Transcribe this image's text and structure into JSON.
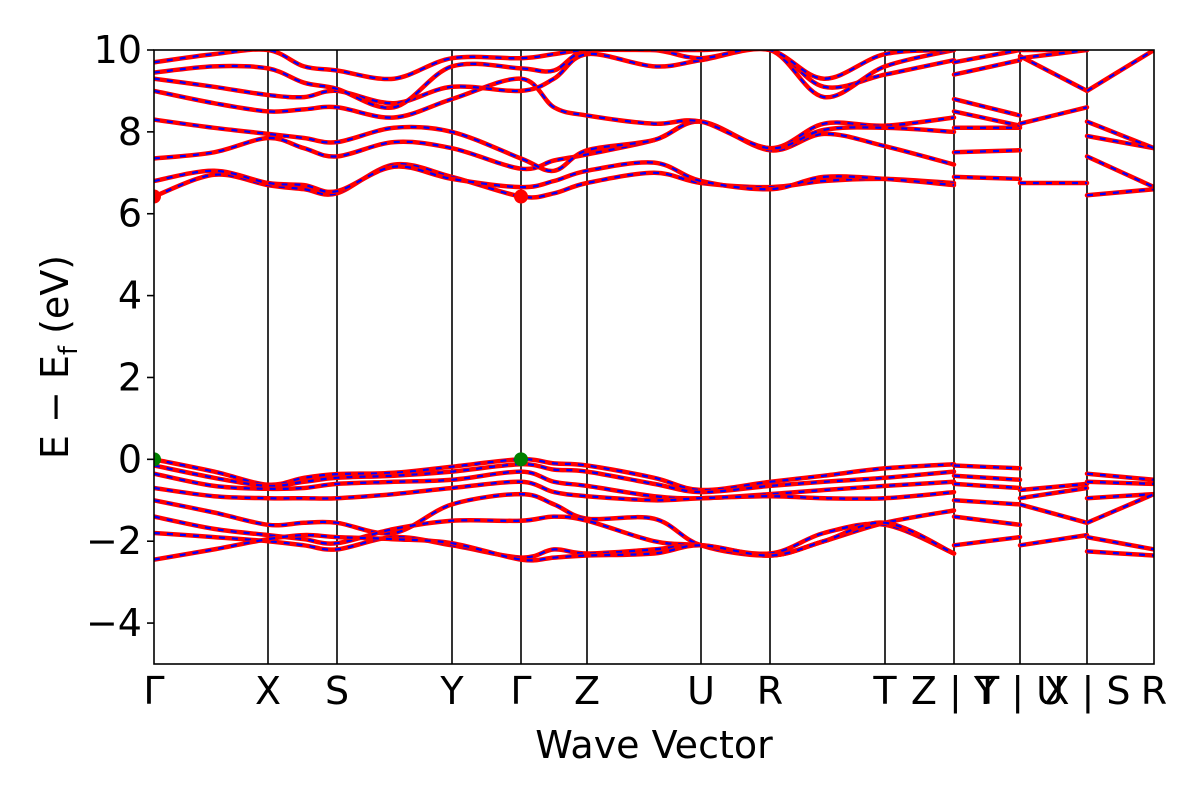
{
  "chart_data": {
    "type": "line",
    "title": "",
    "xlabel": "Wave Vector",
    "ylabel_parts": {
      "main": "E − E",
      "sub": "f",
      "unit": " (eV)"
    },
    "ylim": [
      -5,
      10
    ],
    "yticks": [
      -4,
      -2,
      0,
      2,
      4,
      6,
      8,
      10
    ],
    "ytick_labels": [
      "−4",
      "−2",
      "0",
      "2",
      "4",
      "6",
      "8",
      "10"
    ],
    "xlim": [
      0,
      10
    ],
    "kpoints": [
      {
        "label": "Γ",
        "x": 0.0
      },
      {
        "label": "X",
        "x": 1.14
      },
      {
        "label": "S",
        "x": 1.83
      },
      {
        "label": "Y",
        "x": 2.98
      },
      {
        "label": "Γ",
        "x": 3.67
      },
      {
        "label": "Z",
        "x": 4.33
      },
      {
        "label": "U",
        "x": 5.47
      },
      {
        "label": "R",
        "x": 6.16
      },
      {
        "label": "T",
        "x": 7.31
      },
      {
        "label": "Z | Y",
        "x": 8.0
      },
      {
        "label": "T | U",
        "x": 8.66
      },
      {
        "label": "X | S",
        "x": 9.33
      },
      {
        "label": "R",
        "x": 10.0
      }
    ],
    "grid": false,
    "legend": "none",
    "colors": {
      "band_primary": "#ff0000",
      "band_overlay": "#0000ff",
      "vbm_marker": "#008000",
      "cbm_marker": "#ff0000"
    },
    "markers": [
      {
        "name": "VBM",
        "points": [
          [
            0.0,
            0.0
          ],
          [
            3.67,
            0.0
          ]
        ],
        "color": "#008000"
      },
      {
        "name": "CBM",
        "points": [
          [
            0.0,
            6.42
          ],
          [
            3.67,
            6.42
          ]
        ],
        "color": "#ff0000"
      }
    ],
    "series": [
      {
        "x": [
          0,
          0.6,
          1.14,
          1.5,
          1.83,
          2.4,
          2.98,
          3.67,
          4.0,
          4.33,
          5.0,
          5.47,
          6.16,
          6.7,
          7.31,
          8.0
        ],
        "values": [
          0.0,
          -0.3,
          -0.62,
          -0.45,
          -0.36,
          -0.33,
          -0.18,
          0.0,
          -0.1,
          -0.15,
          -0.45,
          -0.75,
          -0.55,
          -0.4,
          -0.22,
          -0.12
        ]
      },
      {
        "x": [
          8.0,
          8.66
        ],
        "values": [
          -0.15,
          -0.22
        ]
      },
      {
        "x": [
          9.33,
          10.0
        ],
        "values": [
          -0.35,
          -0.5
        ]
      },
      {
        "x": [
          0,
          0.6,
          1.14,
          1.5,
          1.83,
          2.4,
          2.98,
          3.67,
          4.0,
          4.33,
          5.0,
          5.47,
          6.16,
          6.7,
          7.31,
          8.0
        ],
        "values": [
          -0.15,
          -0.45,
          -0.65,
          -0.55,
          -0.45,
          -0.4,
          -0.3,
          -0.12,
          -0.25,
          -0.3,
          -0.6,
          -0.8,
          -0.65,
          -0.55,
          -0.45,
          -0.3
        ]
      },
      {
        "x": [
          8.0,
          8.66
        ],
        "values": [
          -0.4,
          -0.5
        ]
      },
      {
        "x": [
          8.66,
          9.33
        ],
        "values": [
          -0.75,
          -0.6
        ]
      },
      {
        "x": [
          9.33,
          10.0
        ],
        "values": [
          -0.55,
          -0.6
        ]
      },
      {
        "x": [
          0,
          0.6,
          1.14,
          1.5,
          1.83,
          2.4,
          2.98,
          3.67,
          4.0,
          4.33,
          5.0,
          5.47,
          6.16,
          6.7,
          7.31,
          8.0
        ],
        "values": [
          -0.35,
          -0.65,
          -0.72,
          -0.7,
          -0.6,
          -0.55,
          -0.5,
          -0.3,
          -0.55,
          -0.65,
          -0.9,
          -0.95,
          -0.85,
          -0.75,
          -0.65,
          -0.55
        ]
      },
      {
        "x": [
          8.0,
          8.66
        ],
        "values": [
          -0.6,
          -0.7
        ]
      },
      {
        "x": [
          8.66,
          9.33
        ],
        "values": [
          -0.95,
          -0.7
        ]
      },
      {
        "x": [
          9.33,
          10.0
        ],
        "values": [
          -0.95,
          -0.85
        ]
      },
      {
        "x": [
          0,
          0.6,
          1.14,
          1.5,
          1.83,
          2.4,
          2.98,
          3.67,
          4.0,
          4.33,
          5.0,
          5.47,
          6.16,
          6.7,
          7.31,
          8.0
        ],
        "values": [
          -0.7,
          -0.9,
          -0.95,
          -0.95,
          -0.95,
          -0.85,
          -0.7,
          -0.55,
          -0.8,
          -0.9,
          -1.0,
          -0.95,
          -0.9,
          -0.95,
          -0.95,
          -0.8
        ]
      },
      {
        "x": [
          8.0,
          8.66
        ],
        "values": [
          -1.0,
          -1.1
        ]
      },
      {
        "x": [
          8.66,
          9.33
        ],
        "values": [
          -1.1,
          -1.55
        ]
      },
      {
        "x": [
          9.33,
          10.0
        ],
        "values": [
          -1.55,
          -0.85
        ]
      },
      {
        "x": [
          0,
          0.6,
          1.14,
          1.5,
          1.83,
          2.4,
          2.98,
          3.67,
          4.0,
          4.33,
          5.0,
          5.47,
          6.16,
          6.7,
          7.31,
          8.0
        ],
        "values": [
          -1.0,
          -1.3,
          -1.6,
          -1.55,
          -1.55,
          -1.8,
          -1.1,
          -0.85,
          -1.1,
          -1.45,
          -1.45,
          -2.1,
          -2.35,
          -2.0,
          -1.55,
          -1.25
        ]
      },
      {
        "x": [
          8.0,
          8.66
        ],
        "values": [
          -1.4,
          -1.6
        ]
      },
      {
        "x": [
          8.66,
          9.33
        ],
        "values": [
          -2.1,
          -1.85
        ]
      },
      {
        "x": [
          9.33,
          10.0
        ],
        "values": [
          -1.9,
          -2.2
        ]
      },
      {
        "x": [
          0,
          0.6,
          1.14,
          1.5,
          1.83,
          2.4,
          2.98,
          3.67,
          4.0,
          4.33,
          5.0,
          5.47,
          6.16,
          6.7,
          7.31,
          8.0
        ],
        "values": [
          -1.4,
          -1.7,
          -1.85,
          -1.95,
          -2.05,
          -1.7,
          -1.5,
          -1.5,
          -1.4,
          -1.5,
          -2.0,
          -2.1,
          -2.3,
          -1.8,
          -1.6,
          -2.3
        ]
      },
      {
        "x": [
          8.0,
          8.66
        ],
        "values": [
          -2.1,
          -1.9
        ]
      },
      {
        "x": [
          9.33,
          10.0
        ],
        "values": [
          -2.25,
          -2.35
        ]
      },
      {
        "x": [
          0,
          0.6,
          1.14,
          1.5,
          1.83,
          2.4,
          2.98,
          3.67,
          4.0,
          4.33,
          5.0,
          5.47,
          6.16,
          6.7,
          7.31,
          8.0
        ],
        "values": [
          -1.8,
          -1.9,
          -2.0,
          -2.1,
          -2.2,
          -1.9,
          -2.1,
          -2.4,
          -2.2,
          -2.3,
          -2.2,
          -2.1,
          -2.35,
          -2.0,
          -1.55,
          -2.3
        ]
      },
      {
        "x": [
          0,
          0.6,
          1.14,
          1.5,
          1.83,
          2.4,
          2.98,
          3.67,
          4.0,
          4.33,
          5.0,
          5.47,
          6.16,
          6.7,
          7.31,
          8.0
        ],
        "values": [
          -2.45,
          -2.2,
          -1.95,
          -1.85,
          -1.9,
          -1.95,
          -2.05,
          -2.45,
          -2.4,
          -2.35,
          -2.3,
          -2.1,
          -2.35,
          -2.0,
          -1.55,
          -2.3
        ]
      },
      {
        "x": [
          0,
          0.6,
          1.14,
          1.5,
          1.83,
          2.4,
          2.98,
          3.67,
          4.0,
          4.33,
          5.0,
          5.47,
          6.16,
          6.7,
          7.31,
          8.0
        ],
        "values": [
          6.42,
          6.95,
          6.7,
          6.6,
          6.5,
          7.2,
          6.9,
          6.42,
          6.5,
          6.75,
          7.0,
          6.75,
          6.65,
          6.8,
          6.85,
          6.75
        ]
      },
      {
        "x": [
          8.0,
          8.66
        ],
        "values": [
          6.9,
          6.85
        ]
      },
      {
        "x": [
          8.66,
          9.33
        ],
        "values": [
          6.75,
          6.75
        ]
      },
      {
        "x": [
          9.33,
          10.0
        ],
        "values": [
          6.45,
          6.6
        ]
      },
      {
        "x": [
          0,
          0.6,
          1.14,
          1.5,
          1.83,
          2.4,
          2.98,
          3.67,
          4.0,
          4.33,
          5.0,
          5.47,
          6.16,
          6.7,
          7.31,
          8.0
        ],
        "values": [
          6.8,
          7.05,
          6.75,
          6.7,
          6.55,
          7.15,
          6.85,
          6.65,
          6.8,
          7.05,
          7.25,
          6.8,
          6.6,
          6.9,
          6.85,
          6.7
        ]
      },
      {
        "x": [
          0,
          0.6,
          1.14,
          1.5,
          1.83,
          2.4,
          2.98,
          3.67,
          4.0,
          4.33,
          5.0,
          5.47,
          6.16,
          6.7,
          7.31,
          8.0
        ],
        "values": [
          7.35,
          7.5,
          7.85,
          7.6,
          7.4,
          7.75,
          7.6,
          7.1,
          7.3,
          7.45,
          7.8,
          8.25,
          7.55,
          7.95,
          7.65,
          7.2
        ]
      },
      {
        "x": [
          8.0,
          8.66
        ],
        "values": [
          7.5,
          7.55
        ]
      },
      {
        "x": [
          9.33,
          10.0
        ],
        "values": [
          7.4,
          6.65
        ]
      },
      {
        "x": [
          0,
          0.6,
          1.14,
          1.5,
          1.83,
          2.4,
          2.98,
          3.67,
          4.0,
          4.33,
          5.0,
          5.47,
          6.16,
          6.7,
          7.31,
          8.0
        ],
        "values": [
          8.3,
          8.1,
          7.95,
          7.85,
          7.75,
          8.1,
          8.0,
          7.35,
          7.05,
          7.55,
          7.8,
          8.25,
          7.6,
          8.2,
          8.15,
          8.35
        ]
      },
      {
        "x": [
          8.0,
          8.66
        ],
        "values": [
          8.1,
          8.1
        ]
      },
      {
        "x": [
          9.33,
          10.0
        ],
        "values": [
          7.9,
          7.6
        ]
      },
      {
        "x": [
          0,
          0.6,
          1.14,
          1.5,
          1.83,
          2.4,
          2.98,
          3.67,
          4.0,
          4.33,
          5.0,
          5.47,
          6.16,
          6.7,
          7.31,
          8.0
        ],
        "values": [
          9.0,
          8.7,
          8.5,
          8.55,
          8.6,
          8.35,
          8.8,
          9.3,
          8.6,
          8.4,
          8.2,
          8.25,
          7.6,
          8.05,
          8.1,
          8.0
        ]
      },
      {
        "x": [
          8.0,
          8.66
        ],
        "values": [
          8.5,
          8.15
        ]
      },
      {
        "x": [
          8.66,
          9.33
        ],
        "values": [
          8.2,
          8.6
        ]
      },
      {
        "x": [
          9.33,
          10.0
        ],
        "values": [
          8.25,
          7.6
        ]
      },
      {
        "x": [
          0,
          0.6,
          1.14,
          1.5,
          1.83,
          2.4,
          2.98,
          3.67,
          4.0,
          4.33,
          5.0,
          5.47,
          6.16,
          6.7,
          7.31,
          8.0
        ],
        "values": [
          9.3,
          9.1,
          8.9,
          8.85,
          9.0,
          8.7,
          9.1,
          9.0,
          9.3,
          9.9,
          9.6,
          9.75,
          10.0,
          9.1,
          9.4,
          9.75
        ]
      },
      {
        "x": [
          8.0,
          8.66
        ],
        "values": [
          8.8,
          8.4
        ]
      },
      {
        "x": [
          8.66,
          9.33
        ],
        "values": [
          9.85,
          9.0
        ]
      },
      {
        "x": [
          9.33,
          10.0
        ],
        "values": [
          9.0,
          10.0
        ]
      },
      {
        "x": [
          0,
          0.6,
          1.14,
          1.5,
          1.83,
          2.4,
          2.98,
          3.67,
          4.0,
          4.33,
          5.0,
          5.47,
          6.16,
          6.7,
          7.31,
          8.0
        ],
        "values": [
          9.45,
          9.6,
          9.55,
          9.2,
          9.05,
          8.6,
          9.6,
          9.55,
          9.5,
          10.0,
          10.0,
          9.8,
          10.0,
          8.85,
          9.6,
          10.0
        ]
      },
      {
        "x": [
          8.0,
          8.66
        ],
        "values": [
          9.4,
          9.75
        ]
      },
      {
        "x": [
          8.66,
          9.33
        ],
        "values": [
          10.0,
          10.0
        ]
      },
      {
        "x": [
          0,
          0.6,
          1.14,
          1.5,
          1.83,
          2.4,
          2.98,
          3.67,
          4.0,
          4.33,
          5.0,
          5.47,
          6.16,
          6.7,
          7.31,
          8.0
        ],
        "values": [
          9.7,
          9.9,
          10.0,
          9.6,
          9.5,
          9.3,
          9.8,
          9.8,
          9.9,
          10.0,
          10.0,
          10.0,
          10.0,
          9.3,
          9.9,
          10.0
        ]
      },
      {
        "x": [
          8.0,
          8.66
        ],
        "values": [
          9.7,
          10.0
        ]
      },
      {
        "x": [
          8.66,
          9.33
        ],
        "values": [
          9.8,
          10.0
        ]
      }
    ]
  }
}
